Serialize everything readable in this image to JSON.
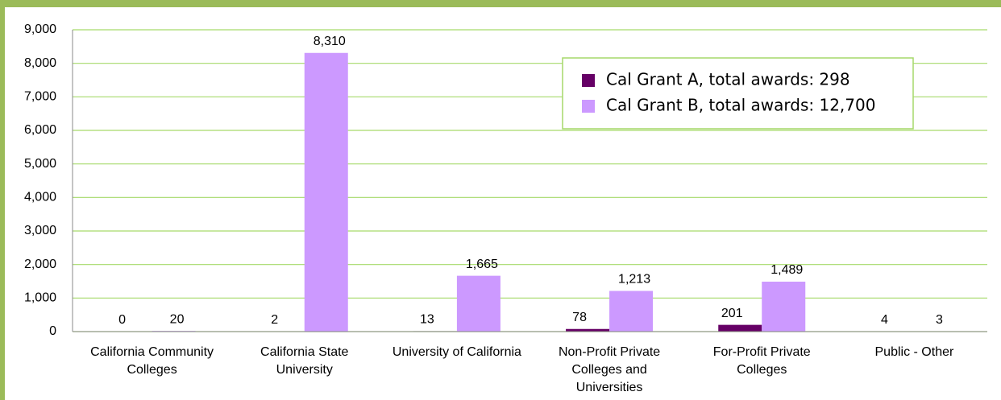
{
  "chart_data": {
    "type": "bar",
    "categories": [
      "California Community Colleges",
      "California State University",
      "University of California",
      "Non-Profit Private Colleges and Universities",
      "For-Profit Private Colleges",
      "Public - Other"
    ],
    "series": [
      {
        "name": "Cal Grant A, total awards: 298",
        "color": "#660066",
        "values": [
          0,
          2,
          13,
          78,
          201,
          4
        ]
      },
      {
        "name": "Cal Grant B, total awards: 12,700",
        "color": "#cc99ff",
        "values": [
          20,
          8310,
          1665,
          1213,
          1489,
          3
        ],
        "value_labels": [
          "20",
          "8,310",
          "1,665",
          "1,213",
          "1,489",
          "3"
        ]
      }
    ],
    "ylim": [
      0,
      9000
    ],
    "yticks": [
      0,
      {
        "value": 1000,
        "label": "1,000"
      },
      {
        "value": 2000,
        "label": "2,000"
      },
      {
        "value": 3000,
        "label": "3,000"
      },
      {
        "value": 4000,
        "label": "4,000"
      },
      {
        "value": 5000,
        "label": "5,000"
      },
      {
        "value": 6000,
        "label": "6,000"
      },
      {
        "value": 7000,
        "label": "7,000"
      },
      {
        "value": 8000,
        "label": "8,000"
      },
      {
        "value": 9000,
        "label": "9,000"
      }
    ],
    "grid": true,
    "legend": "upper right"
  }
}
